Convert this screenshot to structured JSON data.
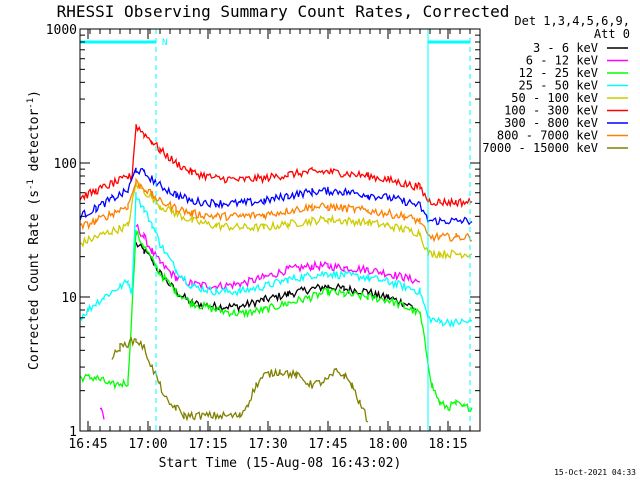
{
  "chart_data": {
    "type": "line",
    "title": "RHESSI Observing Summary Count Rates, Corrected",
    "xlabel": "Start Time (15-Aug-08 16:43:02)",
    "ylabel_prefix": "Corrected Count Rate (s",
    "ylabel_sup1": "-1",
    "ylabel_mid": " detector",
    "ylabel_sup2": "-1",
    "ylabel_suffix": ")",
    "y_scale": "log",
    "ylim": [
      1,
      1000
    ],
    "xlim_minutes_since_1643": [
      0,
      100
    ],
    "x_ticks": [
      {
        "label": "16:45",
        "minutes_since_1643": 2
      },
      {
        "label": "17:00",
        "minutes_since_1643": 17
      },
      {
        "label": "17:15",
        "minutes_since_1643": 32
      },
      {
        "label": "17:30",
        "minutes_since_1643": 47
      },
      {
        "label": "17:45",
        "minutes_since_1643": 62
      },
      {
        "label": "18:00",
        "minutes_since_1643": 77
      },
      {
        "label": "18:15",
        "minutes_since_1643": 92
      }
    ],
    "y_ticks": [
      {
        "label": "1",
        "value": 1
      },
      {
        "label": "10",
        "value": 10
      },
      {
        "label": "100",
        "value": 100
      },
      {
        "label": "1000",
        "value": 1000
      }
    ],
    "detector_label_line1": "Det 1,3,4,5,6,9,",
    "detector_label_line2": "Att 0",
    "night_marker_label": "N",
    "night_intervals_minutes_since_1643": [
      [
        0,
        19
      ],
      [
        87,
        97.5
      ]
    ],
    "timestamp": "15-Oct-2021 04:33",
    "series": [
      {
        "name": "3 - 6 keV",
        "color": "#000000",
        "x": [
          0,
          12,
          14,
          16,
          18,
          20,
          24,
          28,
          34,
          40,
          46,
          52,
          58,
          62,
          66,
          72,
          75,
          77,
          79,
          81,
          83,
          84,
          85
        ],
        "y": [
          null,
          null,
          25,
          22,
          19,
          15,
          11,
          9,
          8.5,
          8.5,
          9.5,
          10.5,
          11.5,
          12,
          11.5,
          11,
          10,
          10,
          9.5,
          9,
          8.5,
          8,
          null
        ]
      },
      {
        "name": "6 - 12 keV",
        "color": "#ff00ff",
        "x": [
          5,
          6,
          6.5,
          12,
          14,
          16,
          18,
          20,
          24,
          28,
          34,
          40,
          46,
          52,
          58,
          62,
          66,
          72,
          77,
          81,
          85
        ],
        "y": [
          1.5,
          1.2,
          null,
          null,
          34,
          28,
          22,
          18,
          14,
          12.5,
          12,
          12.5,
          14,
          16,
          17,
          17,
          16.5,
          16,
          15,
          14,
          13
        ]
      },
      {
        "name": "12 - 25 keV",
        "color": "#00ff00",
        "x": [
          0,
          4,
          8,
          12,
          14,
          16,
          18,
          20,
          24,
          28,
          34,
          40,
          46,
          52,
          58,
          62,
          66,
          72,
          77,
          81,
          85,
          88,
          90,
          92,
          94,
          96,
          98
        ],
        "y": [
          2.5,
          2.5,
          2.2,
          2.3,
          30,
          24,
          19,
          15,
          11,
          9,
          8,
          7.5,
          8,
          9,
          10,
          11,
          10.5,
          10,
          9.5,
          8.5,
          7.5,
          2.2,
          1.6,
          1.5,
          1.6,
          1.5,
          1.5
        ]
      },
      {
        "name": "25 - 50 keV",
        "color": "#00ffff",
        "x": [
          0,
          2,
          4,
          6,
          8,
          10,
          12,
          13,
          14,
          16,
          18,
          20,
          24,
          28,
          34,
          40,
          46,
          52,
          58,
          62,
          66,
          72,
          77,
          81,
          85,
          87,
          90,
          94,
          98
        ],
        "y": [
          7,
          8,
          9,
          10,
          11,
          12,
          13,
          11,
          58,
          45,
          35,
          25,
          16,
          12,
          11,
          11,
          12,
          13.5,
          14.5,
          15,
          14.5,
          14,
          13,
          12,
          11,
          7,
          6.5,
          6.5,
          6.5
        ]
      },
      {
        "name": "50 - 100 keV",
        "color": "#cccc00",
        "x": [
          0,
          4,
          8,
          12,
          14,
          16,
          18,
          20,
          24,
          28,
          34,
          40,
          46,
          52,
          58,
          62,
          66,
          72,
          77,
          81,
          85,
          87,
          90,
          94,
          98
        ],
        "y": [
          25,
          28,
          31,
          34,
          70,
          62,
          55,
          48,
          42,
          37,
          34,
          33,
          33,
          35,
          37,
          38,
          37,
          36,
          34,
          32,
          30,
          21,
          21,
          21,
          21
        ]
      },
      {
        "name": "100 - 300 keV",
        "color": "#ff0000",
        "x": [
          0,
          4,
          8,
          12,
          13,
          14,
          16,
          18,
          20,
          24,
          28,
          34,
          40,
          46,
          52,
          58,
          62,
          66,
          72,
          77,
          81,
          85,
          87,
          90,
          94,
          98
        ],
        "y": [
          55,
          62,
          70,
          78,
          80,
          190,
          165,
          145,
          125,
          100,
          85,
          77,
          75,
          77,
          82,
          86,
          86,
          84,
          80,
          75,
          70,
          66,
          52,
          51,
          51,
          51
        ]
      },
      {
        "name": "300 - 800 keV",
        "color": "#0000ff",
        "x": [
          0,
          4,
          8,
          12,
          14,
          16,
          18,
          20,
          24,
          28,
          34,
          40,
          46,
          52,
          58,
          62,
          66,
          72,
          77,
          81,
          85,
          87,
          90,
          94,
          98
        ],
        "y": [
          40,
          46,
          54,
          62,
          90,
          84,
          76,
          68,
          58,
          52,
          50,
          50,
          52,
          57,
          61,
          62,
          61,
          58,
          55,
          52,
          48,
          37,
          37,
          37,
          37
        ]
      },
      {
        "name": "800 - 7000 keV",
        "color": "#ff8000",
        "x": [
          0,
          4,
          8,
          12,
          14,
          16,
          18,
          20,
          24,
          28,
          34,
          40,
          46,
          52,
          58,
          62,
          66,
          72,
          77,
          81,
          85,
          87,
          90,
          94,
          98
        ],
        "y": [
          33,
          37,
          42,
          48,
          72,
          65,
          58,
          52,
          46,
          42,
          40,
          40,
          41,
          44,
          47,
          47,
          46,
          44,
          42,
          40,
          37,
          28,
          28,
          28,
          28
        ]
      },
      {
        "name": "7000 - 15000 keV",
        "color": "#808000",
        "x": [
          8,
          10,
          12,
          14,
          16,
          18,
          20,
          22,
          24,
          26,
          40,
          42,
          44,
          46,
          50,
          54,
          58,
          62,
          64,
          66,
          68,
          70,
          72
        ],
        "y": [
          3.5,
          4.2,
          4.5,
          4.8,
          4.2,
          3.0,
          2.2,
          1.6,
          1.5,
          1.3,
          1.3,
          1.6,
          2.2,
          2.6,
          2.8,
          2.6,
          2.2,
          2.4,
          2.8,
          2.6,
          2.2,
          1.6,
          1.2
        ]
      }
    ]
  }
}
